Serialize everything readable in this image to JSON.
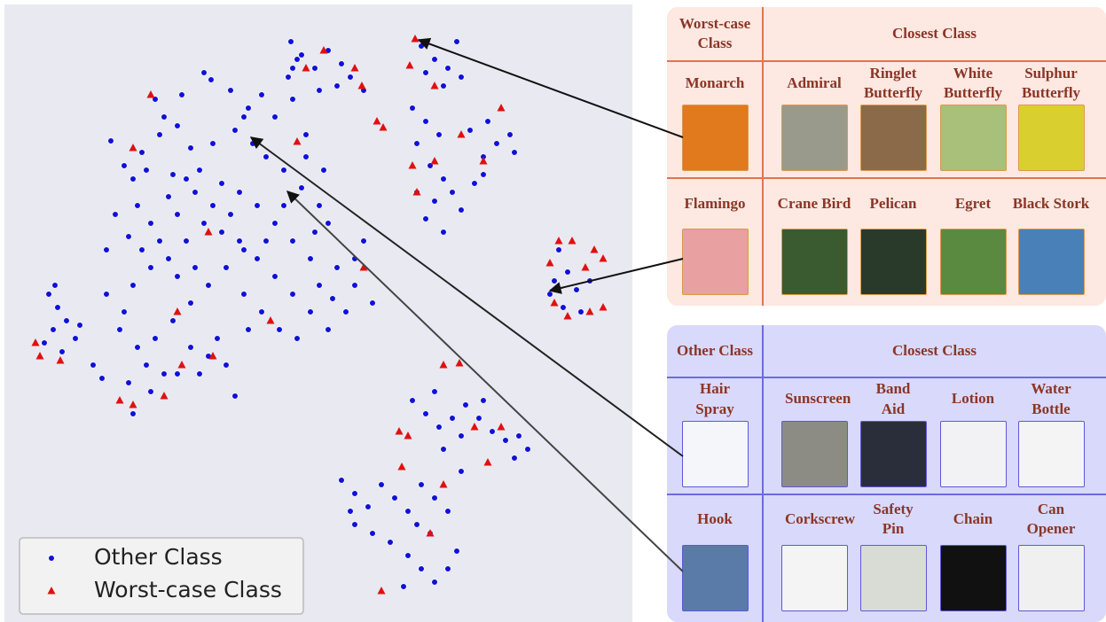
{
  "chart_data": {
    "type": "scatter",
    "xlim": [
      0,
      713
    ],
    "ylim": [
      0,
      700
    ],
    "legend": "lower left",
    "series": [
      {
        "name": "Other Class",
        "color": "#1010d8",
        "marker": "circle",
        "x": [
          125,
          140,
          160,
          180,
          200,
          215,
          240,
          265,
          280,
          295,
          310,
          330,
          325,
          345,
          285,
          300,
          320,
          340,
          360,
          370,
          230,
          238,
          175,
          150,
          155,
          130,
          120,
          145,
          170,
          190,
          210,
          225,
          250,
          270,
          290,
          310,
          330,
          350,
          380,
          400,
          420,
          390,
          370,
          350,
          330,
          310,
          290,
          270,
          250,
          230,
          210,
          190,
          170,
          150,
          140,
          135,
          155,
          175,
          195,
          215,
          235,
          255,
          275,
          295,
          315,
          335,
          215,
          235,
          255,
          185,
          165,
          145,
          115,
          105,
          170,
          150,
          265,
          245,
          275,
          300,
          320,
          260,
          240,
          200,
          180,
          160,
          200,
          220,
          280,
          360,
          375,
          400,
          410,
          365,
          345,
          355,
          220,
          195,
          165,
          185,
          205,
          260,
          275,
          335,
          120,
          200,
          225,
          328,
          340,
          355,
          370,
          385,
          395,
          410,
          380,
          360,
          330,
          475,
          490,
          505,
          515,
          520,
          500,
          480,
          465,
          480,
          495,
          470,
          485,
          500,
          490,
          510,
          520,
          535,
          545,
          560,
          575,
          580,
          550,
          530,
          470,
          480,
          500,
          545,
          620,
          635,
          650,
          665,
          640,
          625,
          655,
          630,
          55,
          65,
          60,
          75,
          85,
          50,
          70,
          90,
          62,
          465,
          480,
          495,
          510,
          525,
          540,
          555,
          570,
          585,
          595,
          580,
          500,
          520,
          545,
          490,
          385,
          400,
          415,
          430,
          445,
          460,
          475,
          490,
          505,
          520,
          400,
          420,
          440,
          460,
          475,
          490,
          455,
          505,
          515,
          485,
          395,
          470
        ],
        "y": [
          543,
          515,
          530,
          550,
          560,
          535,
          540,
          555,
          580,
          595,
          570,
          590,
          615,
          550,
          540,
          525,
          510,
          490,
          470,
          450,
          620,
          612,
          590,
          500,
          470,
          460,
          420,
          435,
          450,
          480,
          500,
          510,
          495,
          485,
          470,
          450,
          430,
          410,
          400,
          380,
          360,
          350,
          330,
          350,
          370,
          390,
          410,
          430,
          440,
          450,
          430,
          410,
          400,
          380,
          350,
          330,
          310,
          320,
          340,
          360,
          380,
          400,
          370,
          350,
          330,
          320,
          310,
          300,
          290,
          280,
          290,
          270,
          275,
          290,
          260,
          235,
          255,
          320,
          420,
          430,
          470,
          460,
          470,
          460,
          430,
          420,
          390,
          400,
          330,
          380,
          365,
          410,
          430,
          510,
          525,
          440,
          485,
          505,
          510,
          570,
          595,
          600,
          570,
          635,
          370,
          280,
          280,
          655,
          640,
          625,
          645,
          630,
          615,
          600,
          605,
          600,
          625,
          650,
          635,
          625,
          655,
          615,
          605,
          620,
          580,
          565,
          550,
          540,
          515,
          500,
          475,
          485,
          465,
          495,
          525,
          540,
          550,
          530,
          565,
          555,
          485,
          455,
          440,
          505,
          370,
          355,
          375,
          385,
          395,
          385,
          350,
          420,
          370,
          355,
          330,
          340,
          320,
          315,
          305,
          335,
          380,
          250,
          235,
          220,
          230,
          245,
          230,
          215,
          205,
          210,
          195,
          185,
          195,
          210,
          250,
          260,
          160,
          145,
          130,
          155,
          140,
          125,
          155,
          140,
          125,
          170,
          110,
          100,
          90,
          75,
          60,
          45,
          40,
          60,
          80,
          100,
          125,
          110
        ]
      },
      {
        "name": "Worst-case Class",
        "color": "#e01010",
        "marker": "triangle",
        "x": [
          468,
          462,
          490,
          365,
          400,
          408,
          345,
          425,
          432,
          335,
          150,
          170,
          465,
          470,
          490,
          520,
          545,
          565,
          620,
          630,
          645,
          670,
          680,
          660,
          625,
          640,
          665,
          680,
          40,
          45,
          68,
          135,
          150,
          185,
          205,
          240,
          200,
          235,
          305,
          410,
          500,
          518,
          450,
          460,
          535,
          550,
          565,
          453,
          500,
          485,
          430
        ],
        "y": [
          658,
          628,
          605,
          645,
          625,
          605,
          625,
          565,
          558,
          542,
          535,
          595,
          515,
          485,
          520,
          550,
          520,
          580,
          405,
          430,
          430,
          420,
          410,
          400,
          360,
          345,
          350,
          355,
          315,
          300,
          295,
          250,
          245,
          255,
          290,
          300,
          350,
          440,
          340,
          400,
          290,
          292,
          215,
          210,
          220,
          180,
          220,
          175,
          155,
          100,
          35
        ]
      }
    ]
  },
  "tables": [
    {
      "header": [
        "Worst-case Class",
        "Closest Class"
      ],
      "rows": [
        {
          "class": "Monarch",
          "closest": [
            "Admiral",
            "Ringlet Butterfly",
            "White Butterfly",
            "Sulphur Butterfly"
          ]
        },
        {
          "class": "Flamingo",
          "closest": [
            "Crane Bird",
            "Pelican",
            "Egret",
            "Black Stork"
          ]
        }
      ]
    },
    {
      "header": [
        "Other Class",
        "Closest Class"
      ],
      "rows": [
        {
          "class": "Hair Spray",
          "closest": [
            "Sunscreen",
            "Band Aid",
            "Lotion",
            "Water Bottle"
          ]
        },
        {
          "class": "Hook",
          "closest": [
            "Corkscrew",
            "Safety Pin",
            "Chain",
            "Can Opener"
          ]
        }
      ]
    }
  ]
}
